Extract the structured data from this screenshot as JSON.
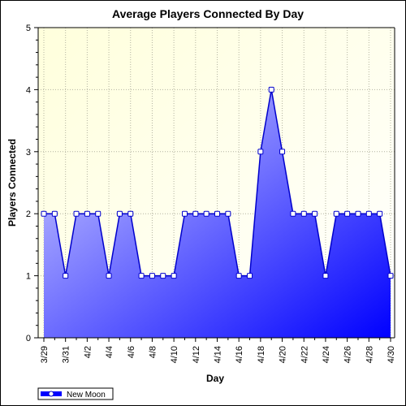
{
  "chart_data": {
    "type": "area",
    "title": "Average Players Connected By Day",
    "xlabel": "Day",
    "ylabel": "Players Connected",
    "ylim": [
      0,
      5
    ],
    "yticks": [
      "0",
      "1",
      "2",
      "3",
      "4",
      "5"
    ],
    "xtick_labels": [
      "3/29",
      "3/31",
      "4/2",
      "4/4",
      "4/6",
      "4/8",
      "4/10",
      "4/12",
      "4/14",
      "4/16",
      "4/18",
      "4/20",
      "4/22",
      "4/24",
      "4/26",
      "4/28",
      "4/30"
    ],
    "x": [
      "3/29",
      "3/30",
      "3/31",
      "4/1",
      "4/2",
      "4/3",
      "4/4",
      "4/5",
      "4/6",
      "4/7",
      "4/8",
      "4/9",
      "4/10",
      "4/11",
      "4/12",
      "4/13",
      "4/14",
      "4/15",
      "4/16",
      "4/17",
      "4/18",
      "4/19",
      "4/20",
      "4/21",
      "4/22",
      "4/23",
      "4/24",
      "4/25",
      "4/26",
      "4/27",
      "4/28",
      "4/29",
      "4/30"
    ],
    "series": [
      {
        "name": "New Moon",
        "values": [
          2,
          2,
          1,
          2,
          2,
          2,
          1,
          2,
          2,
          1,
          1,
          1,
          1,
          2,
          2,
          2,
          2,
          2,
          1,
          1,
          3,
          4,
          3,
          2,
          2,
          2,
          1,
          2,
          2,
          2,
          2,
          2,
          1
        ]
      }
    ],
    "grid": true,
    "legend_position": "bottom-left",
    "colors": {
      "plot_bg_top": "#ffffdc",
      "plot_bg_bottom": "#ffffff",
      "area_light": "#d8d8ff",
      "area_dark": "#0000ff",
      "line": "#0000cc",
      "marker_fill": "#ffffff",
      "grid": "#b4b4a0"
    }
  }
}
